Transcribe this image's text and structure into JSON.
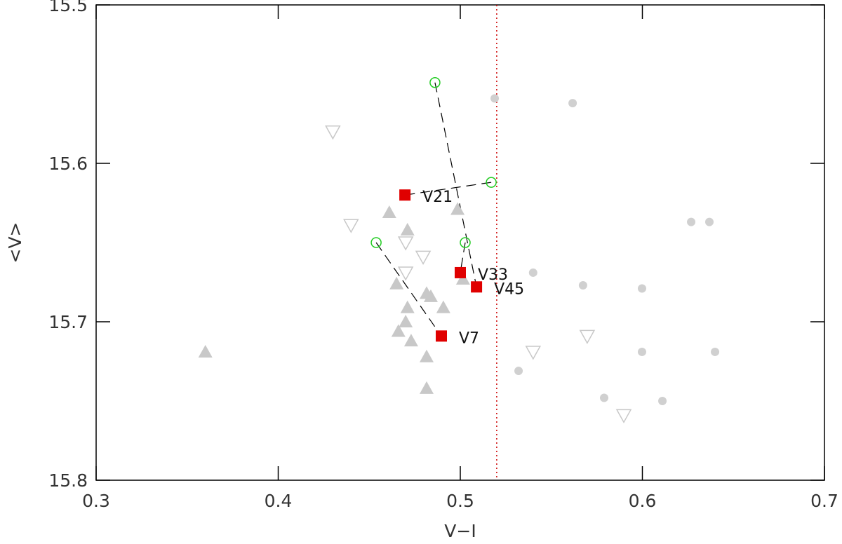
{
  "chart_data": {
    "type": "scatter",
    "xlabel": "V−I",
    "ylabel": "<V>",
    "xlim": [
      0.3,
      0.7
    ],
    "xticks": [
      0.3,
      0.4,
      0.5,
      0.6,
      0.7
    ],
    "ylim": [
      15.8,
      15.5
    ],
    "yticks": [
      15.5,
      15.6,
      15.7,
      15.8
    ],
    "vline": {
      "x": 0.52,
      "color": "#cc0000"
    },
    "series": [
      {
        "marker": "triangle-up",
        "color": "#c8c8c8",
        "x": [
          0.36,
          0.461,
          0.471,
          0.465,
          0.471,
          0.47,
          0.466,
          0.473,
          0.4815,
          0.4838,
          0.4907,
          0.4815,
          0.4815,
          0.4985,
          0.5015
        ],
        "values": [
          15.719,
          15.631,
          15.642,
          15.676,
          15.691,
          15.7,
          15.706,
          15.712,
          15.682,
          15.684,
          15.691,
          15.722,
          15.742,
          15.629,
          15.673
        ]
      },
      {
        "marker": "triangle-down-open",
        "color": "#c8c8c8",
        "x": [
          0.43,
          0.44,
          0.47,
          0.4796,
          0.47,
          0.54,
          0.5697,
          0.5898
        ],
        "values": [
          15.58,
          15.639,
          15.65,
          15.659,
          15.669,
          15.719,
          15.709,
          15.759
        ]
      },
      {
        "marker": "circle",
        "color": "#d0d0d0",
        "x": [
          0.5189,
          0.5617,
          0.6268,
          0.6368,
          0.54,
          0.5674,
          0.5998,
          0.5998,
          0.6399,
          0.532,
          0.579,
          0.611
        ],
        "values": [
          15.559,
          15.562,
          15.637,
          15.637,
          15.669,
          15.677,
          15.679,
          15.719,
          15.719,
          15.731,
          15.748,
          15.75
        ]
      },
      {
        "marker": "circle-open",
        "color": "#22cc22",
        "x": [
          0.517,
          0.5027,
          0.4861,
          0.4538
        ],
        "values": [
          15.612,
          15.65,
          15.549,
          15.65
        ]
      },
      {
        "marker": "square",
        "color": "#e00000",
        "x": [
          0.4696,
          0.5,
          0.5089,
          0.4896
        ],
        "values": [
          15.62,
          15.669,
          15.678,
          15.709
        ],
        "labels": [
          "V21",
          "V33",
          "V45",
          "V7"
        ]
      }
    ]
  }
}
